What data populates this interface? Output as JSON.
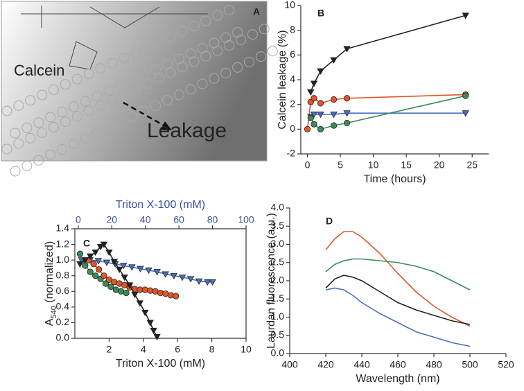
{
  "panel_a": {
    "label": "A",
    "texts": [
      "Calcein",
      "Leakage"
    ]
  },
  "chart_data": [
    {
      "type": "line",
      "panel": "B",
      "ylabel": "Calcein leakage (%)",
      "xlabel": "Time (hours)",
      "xlim": [
        -1,
        27.5
      ],
      "xticks": [
        0,
        5,
        10,
        15,
        20,
        25
      ],
      "ylim": [
        -2,
        10
      ],
      "yticks": [
        -2,
        0,
        2,
        4,
        6,
        8,
        10
      ],
      "series": [
        {
          "color": "#222222",
          "marker": "triangle",
          "x": [
            0.5,
            1,
            2,
            4,
            6,
            24
          ],
          "values": [
            3,
            3.7,
            4.7,
            5.6,
            6.5,
            9.2
          ]
        },
        {
          "color": "#e0562a",
          "marker": "circle",
          "x": [
            0,
            0.5,
            1,
            2,
            4,
            6,
            24
          ],
          "values": [
            0,
            2.2,
            2.5,
            2.1,
            2.4,
            2.5,
            2.8
          ]
        },
        {
          "color": "#4a6fbf",
          "marker": "triangle",
          "x": [
            0.5,
            1,
            2,
            4,
            6,
            24
          ],
          "values": [
            1.0,
            1.2,
            1.2,
            1.2,
            1.3,
            1.3
          ]
        },
        {
          "color": "#3d8a5a",
          "marker": "circle",
          "x": [
            0.5,
            1,
            2,
            4,
            6,
            24
          ],
          "values": [
            0.9,
            0.4,
            0,
            0.3,
            0.5,
            2.7
          ]
        }
      ]
    },
    {
      "type": "line",
      "panel": "C",
      "ylabel": [
        "A",
        "540",
        " (normalized)"
      ],
      "xlabel": "Triton X-100 (mM)",
      "x2label": "Triton X-100 (mM)",
      "x2color": "#3a4fa0",
      "xlim": [
        0,
        10
      ],
      "xticks": [
        2,
        4,
        6,
        8,
        10
      ],
      "x2lim": [
        -2,
        100
      ],
      "x2ticks": [
        0,
        20,
        40,
        60,
        80,
        100
      ],
      "ylim": [
        0,
        1.4
      ],
      "yticks": [
        {
          "value": 0,
          "label": "0.0"
        },
        0.2,
        0.4,
        0.6,
        0.8,
        {
          "value": 1,
          "label": "1.0"
        },
        1.2,
        1.4
      ],
      "series": [
        {
          "color": "#4a6fbf",
          "marker": "triangle",
          "axis": "x2",
          "x": [
            2,
            7,
            12,
            17,
            22,
            27,
            32,
            37,
            42,
            47,
            52,
            57,
            62,
            67,
            72,
            77,
            80
          ],
          "values": [
            1.0,
            1.0,
            0.99,
            0.97,
            0.95,
            0.93,
            0.91,
            0.89,
            0.87,
            0.85,
            0.82,
            0.8,
            0.78,
            0.76,
            0.73,
            0.72,
            0.72
          ]
        },
        {
          "color": "#3d8a5a",
          "marker": "circle",
          "x": [
            0.3,
            0.6,
            0.9,
            1.2,
            1.5,
            1.8,
            2.1,
            2.4,
            2.7,
            3.0
          ],
          "values": [
            1.08,
            0.93,
            0.85,
            0.8,
            0.76,
            0.7,
            0.66,
            0.62,
            0.6,
            0.58
          ]
        },
        {
          "color": "#e0562a",
          "marker": "circle",
          "x": [
            0.8,
            1.1,
            1.4,
            1.7,
            2.0,
            2.3,
            2.6,
            2.9,
            3.2,
            3.5,
            3.8,
            4.1,
            4.4,
            4.7,
            5.0,
            5.3,
            5.6,
            5.9
          ],
          "values": [
            1.0,
            0.95,
            0.88,
            0.8,
            0.75,
            0.72,
            0.7,
            0.68,
            0.65,
            0.63,
            0.62,
            0.62,
            0.61,
            0.6,
            0.58,
            0.57,
            0.55,
            0.54
          ]
        },
        {
          "color": "#222222",
          "marker": "triangle",
          "x": [
            0.3,
            0.6,
            0.9,
            1.2,
            1.5,
            1.7,
            2.0,
            2.3,
            2.6,
            2.9,
            3.2,
            3.5,
            3.8,
            4.1,
            4.4,
            4.6,
            4.8
          ],
          "values": [
            0.95,
            1.0,
            1.05,
            1.1,
            1.17,
            1.2,
            1.1,
            0.98,
            0.88,
            0.78,
            0.68,
            0.56,
            0.45,
            0.33,
            0.2,
            0.1,
            0.02
          ]
        }
      ]
    },
    {
      "type": "line",
      "panel": "D",
      "ylabel": "Laurdan fluorescence (a.u.)",
      "xlabel": "Wavelength (nm)",
      "xlim": [
        400,
        520
      ],
      "xticks": [
        400,
        420,
        440,
        460,
        480,
        500,
        520
      ],
      "ylim": [
        0,
        4
      ],
      "yticks": [
        {
          "value": 0,
          "label": "0.0"
        },
        0.5,
        {
          "value": 1,
          "label": "1.0"
        },
        1.5,
        {
          "value": 2,
          "label": "2.0"
        },
        2.5,
        {
          "value": 3,
          "label": "3.0"
        },
        3.5,
        {
          "value": 4,
          "label": "4.0"
        }
      ],
      "series": [
        {
          "color": "#e0562a",
          "x": [
            420,
            425,
            430,
            435,
            440,
            450,
            460,
            470,
            480,
            490,
            500
          ],
          "values": [
            2.85,
            3.15,
            3.35,
            3.35,
            3.2,
            2.75,
            2.2,
            1.7,
            1.3,
            1.0,
            0.75
          ]
        },
        {
          "color": "#3d8a5a",
          "x": [
            420,
            425,
            430,
            435,
            440,
            450,
            460,
            470,
            480,
            490,
            500
          ],
          "values": [
            2.25,
            2.45,
            2.55,
            2.6,
            2.6,
            2.55,
            2.5,
            2.4,
            2.25,
            2.0,
            1.75
          ]
        },
        {
          "color": "#222222",
          "x": [
            420,
            425,
            430,
            435,
            440,
            450,
            460,
            470,
            480,
            490,
            500
          ],
          "values": [
            1.8,
            2.05,
            2.15,
            2.1,
            2.0,
            1.7,
            1.4,
            1.2,
            1.05,
            0.9,
            0.8
          ]
        },
        {
          "color": "#4a6fbf",
          "x": [
            420,
            425,
            430,
            435,
            440,
            450,
            460,
            470,
            480,
            490,
            500
          ],
          "values": [
            1.75,
            1.8,
            1.75,
            1.6,
            1.4,
            1.1,
            0.85,
            0.6,
            0.45,
            0.3,
            0.2
          ]
        }
      ]
    }
  ]
}
